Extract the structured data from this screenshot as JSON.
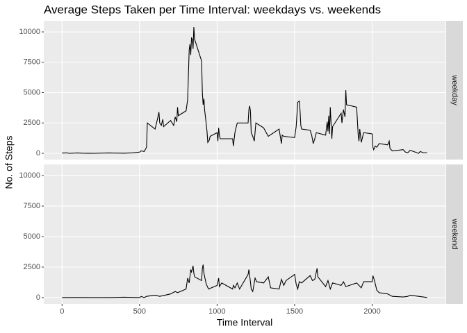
{
  "chart_data": {
    "type": "line",
    "title": "Average Steps Taken per Time Interval: weekdays vs. weekends",
    "xlabel": "Time Interval",
    "ylabel": "No. of Steps",
    "color": "#000000",
    "grid": true,
    "xlim": [
      -117.75,
      2472.75
    ],
    "xticks": [
      0,
      500,
      1000,
      1500,
      2000
    ],
    "ylim": [
      -514,
      10914
    ],
    "yticks": [
      0,
      2500,
      5000,
      7500,
      10000
    ],
    "panels": [
      {
        "name": "weekday",
        "x": [
          0,
          10,
          25,
          50,
          100,
          130,
          200,
          300,
          400,
          455,
          500,
          510,
          530,
          545,
          550,
          600,
          615,
          625,
          630,
          640,
          650,
          655,
          700,
          720,
          730,
          740,
          745,
          750,
          800,
          810,
          820,
          825,
          830,
          835,
          840,
          845,
          850,
          855,
          900,
          905,
          910,
          915,
          920,
          925,
          935,
          940,
          950,
          955,
          1000,
          1005,
          1010,
          1015,
          1020,
          1030,
          1100,
          1105,
          1115,
          1120,
          1130,
          1200,
          1205,
          1210,
          1215,
          1220,
          1230,
          1240,
          1250,
          1300,
          1330,
          1400,
          1415,
          1420,
          1430,
          1500,
          1510,
          1520,
          1530,
          1535,
          1540,
          1545,
          1600,
          1610,
          1620,
          1630,
          1640,
          1700,
          1710,
          1715,
          1720,
          1725,
          1730,
          1740,
          1745,
          1800,
          1805,
          1815,
          1825,
          1830,
          1835,
          1900,
          1910,
          1915,
          1920,
          1930,
          1945,
          2000,
          2005,
          2010,
          2020,
          2030,
          2045,
          2100,
          2110,
          2115,
          2130,
          2200,
          2215,
          2230,
          2245,
          2300,
          2310,
          2330,
          2355
        ],
        "values": [
          50,
          20,
          40,
          0,
          30,
          10,
          0,
          30,
          10,
          40,
          100,
          200,
          150,
          500,
          2500,
          2000,
          2800,
          3400,
          2500,
          2300,
          2800,
          2200,
          2700,
          2300,
          3000,
          2600,
          3800,
          3100,
          3500,
          4400,
          8500,
          9000,
          8100,
          9500,
          9400,
          8600,
          10400,
          9400,
          7600,
          5000,
          4000,
          4500,
          3500,
          3000,
          1800,
          900,
          1100,
          1400,
          1700,
          1000,
          2100,
          1500,
          1200,
          1200,
          1200,
          600,
          1700,
          2000,
          2500,
          2500,
          3600,
          3900,
          3500,
          1700,
          1400,
          1000,
          2500,
          2100,
          1400,
          2000,
          800,
          1500,
          1400,
          1300,
          2200,
          4200,
          4300,
          3500,
          2300,
          2000,
          1900,
          1500,
          800,
          1200,
          1700,
          1500,
          2600,
          1800,
          3100,
          1600,
          3800,
          1200,
          2200,
          3300,
          2500,
          3600,
          3000,
          5200,
          4000,
          3800,
          1500,
          1000,
          2000,
          900,
          1700,
          1600,
          500,
          300,
          600,
          500,
          800,
          700,
          1000,
          400,
          200,
          300,
          100,
          50,
          250,
          0,
          150,
          50,
          50
        ]
      },
      {
        "name": "weekend",
        "x": [
          0,
          100,
          200,
          300,
          400,
          500,
          510,
          530,
          545,
          600,
          630,
          700,
          730,
          745,
          800,
          810,
          820,
          830,
          835,
          845,
          850,
          855,
          900,
          905,
          910,
          915,
          920,
          930,
          945,
          1000,
          1010,
          1015,
          1030,
          1100,
          1105,
          1115,
          1130,
          1145,
          1200,
          1205,
          1215,
          1220,
          1230,
          1245,
          1255,
          1300,
          1330,
          1345,
          1400,
          1415,
          1430,
          1445,
          1500,
          1510,
          1520,
          1530,
          1545,
          1600,
          1615,
          1630,
          1645,
          1650,
          1700,
          1715,
          1730,
          1745,
          1800,
          1815,
          1830,
          1900,
          1930,
          1945,
          2000,
          2005,
          2015,
          2030,
          2045,
          2100,
          2130,
          2200,
          2230,
          2245,
          2300,
          2330,
          2355
        ],
        "values": [
          0,
          10,
          0,
          0,
          30,
          0,
          100,
          0,
          100,
          200,
          100,
          300,
          500,
          400,
          700,
          1600,
          1200,
          2300,
          2100,
          2600,
          2000,
          1700,
          1400,
          2400,
          2700,
          2000,
          1700,
          1100,
          700,
          1000,
          1600,
          900,
          1200,
          700,
          1000,
          800,
          1200,
          700,
          1900,
          2300,
          1300,
          700,
          500,
          1600,
          1300,
          1200,
          1700,
          800,
          700,
          1500,
          1000,
          1400,
          1900,
          1100,
          700,
          1300,
          1200,
          1800,
          1400,
          1500,
          2400,
          1700,
          900,
          1400,
          700,
          1200,
          1000,
          1300,
          900,
          1200,
          800,
          1300,
          1300,
          1800,
          1400,
          600,
          400,
          300,
          100,
          50,
          100,
          200,
          100,
          50,
          0
        ]
      }
    ]
  }
}
